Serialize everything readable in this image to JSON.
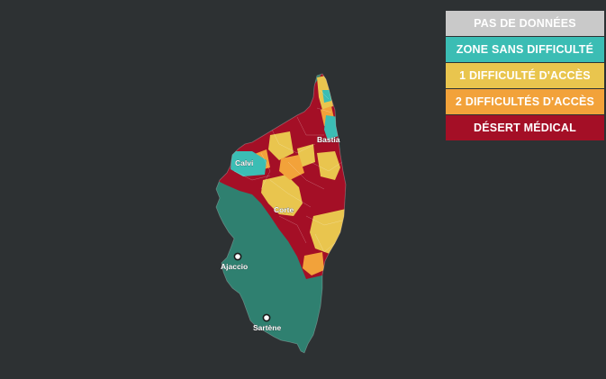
{
  "legend": {
    "items": [
      {
        "label": "PAS DE DONNÉES",
        "color": "#c9c9c9"
      },
      {
        "label": "ZONE SANS DIFFICULTÉ",
        "color": "#3bbdb4"
      },
      {
        "label": "1 DIFFICULTÉ D'ACCÈS",
        "color": "#e9c54e"
      },
      {
        "label": "2 DIFFICULTÉS D'ACCÈS",
        "color": "#f2a23a"
      },
      {
        "label": "DÉSERT MÉDICAL",
        "color": "#a40f26"
      }
    ]
  },
  "map": {
    "colors": {
      "south_zone": "#2f8070",
      "no_difficulty": "#3bbdb4",
      "one_difficulty": "#e9c54e",
      "two_difficulties": "#f2a23a",
      "desert": "#a40f26"
    },
    "cities": [
      {
        "name": "Bastia",
        "marker": false
      },
      {
        "name": "Calvi",
        "marker": false
      },
      {
        "name": "Corte",
        "marker": false
      },
      {
        "name": "Ajaccio",
        "marker": true
      },
      {
        "name": "Sartène",
        "marker": true
      }
    ]
  }
}
